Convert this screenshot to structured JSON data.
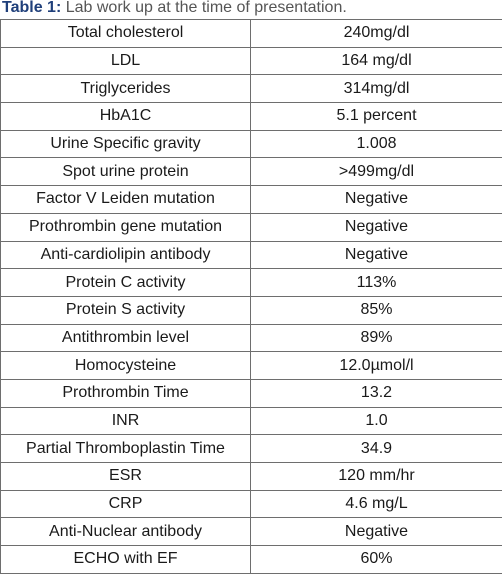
{
  "caption": {
    "label": "Table 1:",
    "text": " Lab work up at the time of presentation."
  },
  "rows": [
    {
      "test": "Total cholesterol",
      "value": "240mg/dl"
    },
    {
      "test": "LDL",
      "value": "164 mg/dl"
    },
    {
      "test": "Triglycerides",
      "value": "314mg/dl"
    },
    {
      "test": "HbA1C",
      "value": "5.1 percent"
    },
    {
      "test": "Urine Specific gravity",
      "value": "1.008"
    },
    {
      "test": "Spot urine protein",
      "value": ">499mg/dl"
    },
    {
      "test": "Factor V Leiden mutation",
      "value": "Negative"
    },
    {
      "test": "Prothrombin gene mutation",
      "value": "Negative"
    },
    {
      "test": "Anti-cardiolipin antibody",
      "value": "Negative"
    },
    {
      "test": "Protein C activity",
      "value": "113%"
    },
    {
      "test": "Protein S activity",
      "value": "85%"
    },
    {
      "test": "Antithrombin level",
      "value": "89%"
    },
    {
      "test": "Homocysteine",
      "value": "12.0µmol/l"
    },
    {
      "test": "Prothrombin Time",
      "value": "13.2"
    },
    {
      "test": "INR",
      "value": "1.0"
    },
    {
      "test": "Partial Thromboplastin Time",
      "value": "34.9"
    },
    {
      "test": "ESR",
      "value": "120 mm/hr"
    },
    {
      "test": "CRP",
      "value": "4.6 mg/L"
    },
    {
      "test": "Anti-Nuclear antibody",
      "value": "Negative"
    },
    {
      "test": "ECHO with EF",
      "value": "60%"
    }
  ]
}
